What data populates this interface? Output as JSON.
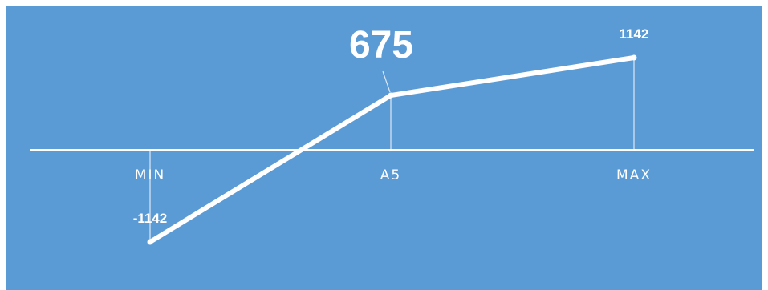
{
  "chart_data": {
    "type": "line",
    "categories": [
      "MIN",
      "A5",
      "MAX"
    ],
    "series": [
      {
        "values": [
          -1142,
          675,
          1142
        ]
      }
    ],
    "data_labels": [
      "-1142",
      "675",
      "1142"
    ],
    "highlight_index": 1,
    "ylim": [
      -1500,
      1500
    ],
    "grid": false,
    "legend": "none",
    "colors": {
      "background": "#5b9bd5",
      "line": "#ffffff",
      "axis": "#ffffff",
      "drop_line": "#dce9f5"
    }
  }
}
